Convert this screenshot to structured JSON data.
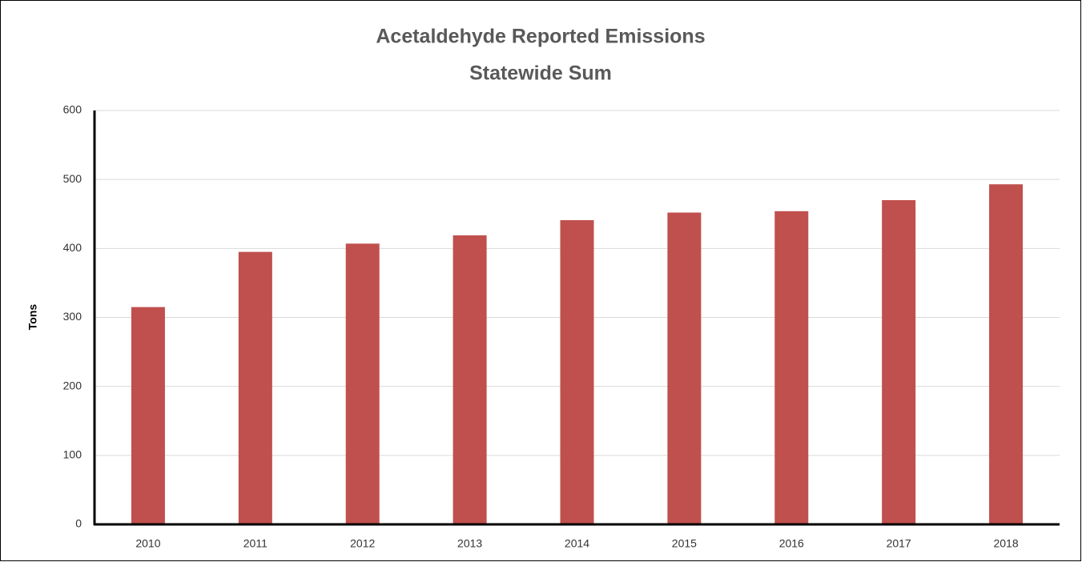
{
  "chart_data": {
    "type": "bar",
    "title": "Acetaldehyde Reported Emissions",
    "subtitle": "Statewide Sum",
    "y_label": "Tons",
    "categories": [
      "2010",
      "2011",
      "2012",
      "2013",
      "2014",
      "2015",
      "2016",
      "2017",
      "2018"
    ],
    "values": [
      315,
      395,
      407,
      419,
      441,
      452,
      454,
      470,
      493
    ],
    "color": "#c0504d",
    "ylim": [
      0,
      600
    ],
    "yticks": [
      0,
      100,
      200,
      300,
      400,
      500,
      600
    ],
    "grid": true
  }
}
